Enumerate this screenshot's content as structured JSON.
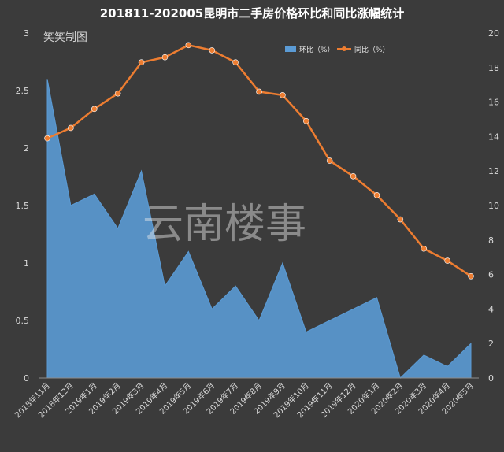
{
  "chart_data": {
    "type": "area",
    "title": "201811-202005昆明市二手房价格环比和同比涨幅统计",
    "categories": [
      "2018年11月",
      "2018年12月",
      "2019年1月",
      "2019年2月",
      "2019年3月",
      "2019年4月",
      "2019年5月",
      "2019年6月",
      "2019年7月",
      "2019年8月",
      "2019年9月",
      "2019年10月",
      "2019年11月",
      "2019年12月",
      "2020年1月",
      "2020年2月",
      "2020年3月",
      "2020年4月",
      "2020年5月"
    ],
    "series": [
      {
        "name": "环比（%）",
        "type": "area",
        "axis": "left",
        "color": "#5b9bd5",
        "values": [
          2.6,
          1.5,
          1.6,
          1.3,
          1.8,
          0.8,
          1.1,
          0.6,
          0.8,
          0.5,
          1.0,
          0.4,
          0.5,
          0.6,
          0.7,
          0.0,
          0.2,
          0.1,
          0.3
        ]
      },
      {
        "name": "同比（%）",
        "type": "line",
        "axis": "right",
        "color": "#ed7d31",
        "values": [
          13.9,
          14.5,
          15.6,
          16.5,
          18.3,
          18.6,
          19.3,
          19.0,
          18.3,
          16.6,
          16.4,
          14.9,
          12.6,
          11.7,
          10.6,
          9.2,
          7.5,
          6.8,
          5.9
        ]
      }
    ],
    "yleft": {
      "min": 0,
      "max": 3,
      "ticks": [
        "0",
        "0.5",
        "1",
        "1.5",
        "2",
        "2.5",
        "3"
      ]
    },
    "yright": {
      "min": 0,
      "max": 20,
      "ticks": [
        "0",
        "2",
        "4",
        "6",
        "8",
        "10",
        "12",
        "14",
        "16",
        "18",
        "20"
      ]
    },
    "legend": "top-right",
    "grid": false
  },
  "watermarks": {
    "corner": "笑笑制图",
    "center": "云南楼事"
  }
}
